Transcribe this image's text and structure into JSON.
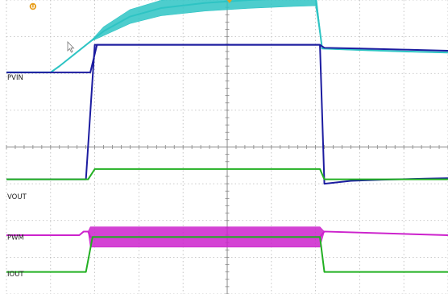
{
  "chart_data": {
    "type": "line",
    "title": "",
    "xlabel": "",
    "ylabel": "",
    "grid": true,
    "grid_divisions": {
      "x": 10,
      "y": 8
    },
    "xlim": [
      0,
      10
    ],
    "ylim": [
      0,
      8
    ],
    "markers": [
      {
        "name": "trigger-marker",
        "text": "U",
        "x": 0.6,
        "color": "#e8a020"
      },
      {
        "name": "time-reference-marker",
        "text": "",
        "x": 5.05,
        "color": "#e8a020"
      }
    ],
    "series": [
      {
        "name": "PVIN",
        "color": "#2ec4c4",
        "x": [
          0,
          1.0,
          1.2,
          1.9,
          2.2,
          2.8,
          3.5,
          4.5,
          5.5,
          6.5,
          7.0,
          7.15,
          8.0,
          9.0,
          10.0
        ],
        "y": [
          6.03,
          6.03,
          6.2,
          6.87,
          7.15,
          7.55,
          7.78,
          7.92,
          8.0,
          8.05,
          8.07,
          6.68,
          6.64,
          6.6,
          6.57
        ],
        "band": [
          0,
          0,
          0,
          0,
          0.24,
          0.38,
          0.42,
          0.44,
          0.45,
          0.45,
          0.45,
          0.02,
          0.02,
          0.02,
          0.02
        ]
      },
      {
        "name": "",
        "color": "#1c1ca0",
        "x": [
          0,
          1.9,
          2.05,
          7.1,
          7.2,
          8.0,
          9.0,
          10.0
        ],
        "y": [
          6.03,
          6.03,
          6.78,
          6.78,
          6.7,
          6.68,
          6.65,
          6.62
        ]
      },
      {
        "name": "VOUT",
        "color": "#1c1ca0",
        "x": [
          0,
          1.8,
          2.0,
          7.1,
          7.2,
          7.8,
          8.5,
          9.5,
          10.0
        ],
        "y": [
          3.12,
          3.12,
          6.78,
          6.78,
          3.0,
          3.08,
          3.11,
          3.14,
          3.15
        ]
      },
      {
        "name": "",
        "color": "#22b022",
        "x": [
          0,
          1.85,
          2.0,
          7.1,
          7.2,
          10.0
        ],
        "y": [
          3.12,
          3.12,
          3.4,
          3.4,
          3.12,
          3.12
        ]
      },
      {
        "name": "PWM",
        "color": "#cc22cc",
        "x": [
          0,
          1.65,
          1.75,
          1.85,
          1.9,
          7.1,
          7.2,
          10.0
        ],
        "y": [
          1.6,
          1.6,
          1.7,
          1.7,
          1.55,
          1.55,
          1.7,
          1.6
        ],
        "band": [
          0,
          0,
          0,
          0,
          0.55,
          0.55,
          0,
          0
        ]
      },
      {
        "name": "IOUT",
        "color": "#22b022",
        "x": [
          0,
          1.8,
          1.95,
          7.1,
          7.2,
          10.0
        ],
        "y": [
          0.6,
          0.6,
          1.55,
          1.55,
          0.6,
          0.6
        ]
      }
    ],
    "channel_labels": [
      {
        "name": "pvin-label",
        "text": "PVIN",
        "series_level": 5.9
      },
      {
        "name": "vout-label",
        "text": "VOUT",
        "series_level": 2.65
      },
      {
        "name": "pwm-label",
        "text": "PWM",
        "series_level": 1.55
      },
      {
        "name": "iout-label",
        "text": "IOUT",
        "series_level": 0.55
      }
    ],
    "axis_color": "#888888",
    "grid_color": "#b8b8b8"
  }
}
